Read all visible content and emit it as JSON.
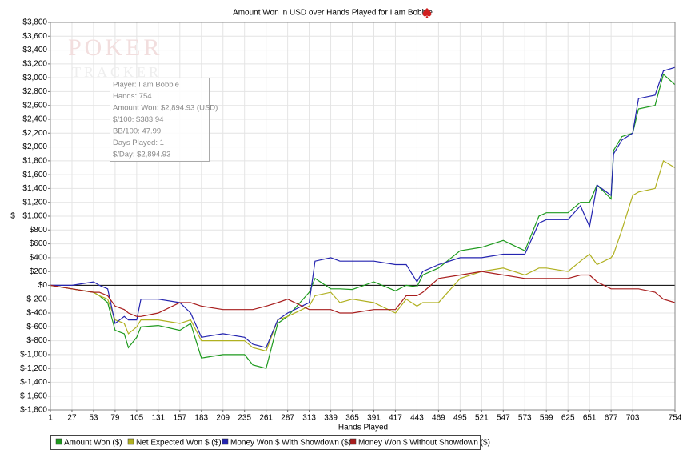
{
  "chart_data": {
    "type": "line",
    "title": "Amount Won in USD over Hands Played for I am Bobbie",
    "xlabel": "Hands Played",
    "ylabel": "$",
    "watermark": [
      "POKER",
      "TRACKER"
    ],
    "tooltip": [
      "Player: I am Bobbie",
      "Hands: 754",
      "Amount Won: $2,894.93 (USD)",
      "$/100: $383.94",
      "BB/100: 47.99",
      "Days Played: 1",
      "$/Day: $2,894.93"
    ],
    "x": [
      1,
      27,
      53,
      60,
      70,
      79,
      90,
      95,
      105,
      110,
      131,
      157,
      170,
      183,
      209,
      235,
      245,
      261,
      275,
      287,
      313,
      320,
      339,
      350,
      365,
      391,
      417,
      430,
      443,
      450,
      469,
      495,
      521,
      547,
      573,
      590,
      599,
      625,
      640,
      651,
      660,
      677,
      680,
      690,
      703,
      710,
      730,
      740,
      754
    ],
    "series": [
      {
        "name": "Amount Won ($)",
        "color": "#1e9a1e",
        "values": [
          0,
          -50,
          -100,
          -150,
          -250,
          -650,
          -700,
          -900,
          -750,
          -600,
          -580,
          -650,
          -550,
          -1050,
          -1000,
          -1000,
          -1150,
          -1200,
          -550,
          -450,
          -100,
          100,
          -50,
          -50,
          -60,
          50,
          -80,
          0,
          -20,
          150,
          250,
          500,
          550,
          650,
          500,
          1000,
          1050,
          1050,
          1200,
          1200,
          1450,
          1250,
          1950,
          2150,
          2200,
          2550,
          2600,
          3050,
          2900
        ]
      },
      {
        "name": "Net Expected Won $ ($)",
        "color": "#b0b020",
        "values": [
          0,
          -50,
          -100,
          -150,
          -200,
          -500,
          -550,
          -700,
          -600,
          -500,
          -500,
          -550,
          -500,
          -800,
          -800,
          -800,
          -900,
          -950,
          -500,
          -450,
          -300,
          -150,
          -100,
          -250,
          -200,
          -250,
          -400,
          -200,
          -300,
          -250,
          -250,
          100,
          200,
          250,
          150,
          250,
          250,
          200,
          350,
          450,
          300,
          400,
          450,
          800,
          1300,
          1350,
          1400,
          1800,
          1700
        ]
      },
      {
        "name": "Money Won $ With Showdown ($)",
        "color": "#2424b0",
        "values": [
          0,
          0,
          50,
          0,
          -50,
          -550,
          -450,
          -500,
          -500,
          -200,
          -200,
          -250,
          -400,
          -750,
          -700,
          -750,
          -850,
          -900,
          -500,
          -400,
          -250,
          350,
          400,
          350,
          350,
          350,
          300,
          300,
          50,
          200,
          300,
          400,
          400,
          450,
          450,
          900,
          950,
          950,
          1150,
          850,
          1450,
          1300,
          1900,
          2100,
          2200,
          2700,
          2750,
          3100,
          3150
        ]
      },
      {
        "name": "Money Won $ Without Showdown ($)",
        "color": "#a81e1e",
        "values": [
          0,
          -50,
          -100,
          -100,
          -150,
          -300,
          -350,
          -400,
          -450,
          -450,
          -400,
          -250,
          -250,
          -300,
          -350,
          -350,
          -350,
          -300,
          -250,
          -200,
          -350,
          -350,
          -350,
          -400,
          -400,
          -350,
          -350,
          -150,
          -150,
          -100,
          100,
          150,
          200,
          150,
          100,
          100,
          100,
          100,
          150,
          150,
          50,
          -50,
          -50,
          -50,
          -50,
          -50,
          -100,
          -200,
          -250
        ]
      }
    ],
    "xlim": [
      1,
      754
    ],
    "xticks": [
      1,
      27,
      53,
      79,
      105,
      131,
      157,
      183,
      209,
      235,
      261,
      287,
      313,
      339,
      365,
      391,
      417,
      443,
      469,
      495,
      521,
      547,
      573,
      599,
      625,
      651,
      677,
      703,
      754
    ],
    "ylim": [
      -1800,
      3800
    ],
    "yticks": [
      {
        "value": -1800,
        "label": "$-1,800"
      },
      {
        "value": -1600,
        "label": "$-1,600"
      },
      {
        "value": -1400,
        "label": "$-1,400"
      },
      {
        "value": -1200,
        "label": "$-1,200"
      },
      {
        "value": -1000,
        "label": "$-1,000"
      },
      {
        "value": -800,
        "label": "$-800"
      },
      {
        "value": -600,
        "label": "$-600"
      },
      {
        "value": -400,
        "label": "$-400"
      },
      {
        "value": -200,
        "label": "$-200"
      },
      {
        "value": 0,
        "label": "$0"
      },
      {
        "value": 200,
        "label": "$200"
      },
      {
        "value": 400,
        "label": "$400"
      },
      {
        "value": 600,
        "label": "$600"
      },
      {
        "value": 800,
        "label": "$800"
      },
      {
        "value": 1000,
        "label": "$1,000"
      },
      {
        "value": 1200,
        "label": "$1,200"
      },
      {
        "value": 1400,
        "label": "$1,400"
      },
      {
        "value": 1600,
        "label": "$1,600"
      },
      {
        "value": 1800,
        "label": "$1,800"
      },
      {
        "value": 2000,
        "label": "$2,000"
      },
      {
        "value": 2200,
        "label": "$2,200"
      },
      {
        "value": 2400,
        "label": "$2,400"
      },
      {
        "value": 2600,
        "label": "$2,600"
      },
      {
        "value": 2800,
        "label": "$2,800"
      },
      {
        "value": 3000,
        "label": "$3,000"
      },
      {
        "value": 3200,
        "label": "$3,200"
      },
      {
        "value": 3400,
        "label": "$3,400"
      },
      {
        "value": 3600,
        "label": "$3,600"
      },
      {
        "value": 3800,
        "label": "$3,800"
      }
    ],
    "grid": true
  }
}
